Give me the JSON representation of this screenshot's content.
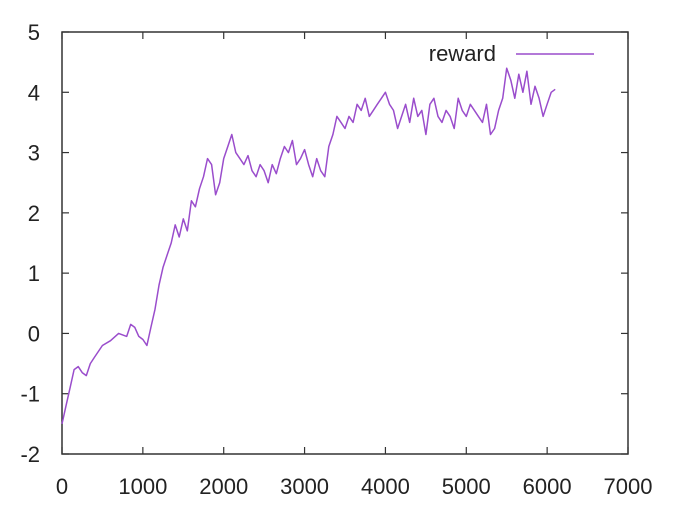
{
  "chart_data": {
    "type": "line",
    "title": "",
    "xlabel": "",
    "ylabel": "",
    "xlim": [
      0,
      7000
    ],
    "ylim": [
      -2,
      5
    ],
    "xticks": [
      0,
      1000,
      2000,
      3000,
      4000,
      5000,
      6000,
      7000
    ],
    "xtick_labels": [
      "0",
      "1000",
      "2000",
      "3000",
      "4000",
      "5000",
      "6000",
      "7000"
    ],
    "yticks": [
      -2,
      -1,
      0,
      1,
      2,
      3,
      4,
      5
    ],
    "ytick_labels": [
      "-2",
      "-1",
      "0",
      "1",
      "2",
      "3",
      "4",
      "5"
    ],
    "grid": false,
    "legend_position": "top-right",
    "series": [
      {
        "name": "reward",
        "color": "#9a4dcc",
        "x": [
          0,
          50,
          100,
          150,
          200,
          250,
          300,
          350,
          400,
          500,
          600,
          700,
          800,
          850,
          900,
          950,
          1000,
          1050,
          1100,
          1150,
          1200,
          1250,
          1300,
          1350,
          1400,
          1450,
          1500,
          1550,
          1600,
          1650,
          1700,
          1750,
          1800,
          1850,
          1900,
          1950,
          2000,
          2050,
          2100,
          2150,
          2200,
          2250,
          2300,
          2350,
          2400,
          2450,
          2500,
          2550,
          2600,
          2650,
          2700,
          2750,
          2800,
          2850,
          2900,
          2950,
          3000,
          3050,
          3100,
          3150,
          3200,
          3250,
          3300,
          3350,
          3400,
          3450,
          3500,
          3550,
          3600,
          3650,
          3700,
          3750,
          3800,
          3850,
          3900,
          3950,
          4000,
          4050,
          4100,
          4150,
          4200,
          4250,
          4300,
          4350,
          4400,
          4450,
          4500,
          4550,
          4600,
          4650,
          4700,
          4750,
          4800,
          4850,
          4900,
          4950,
          5000,
          5050,
          5100,
          5150,
          5200,
          5250,
          5300,
          5350,
          5400,
          5450,
          5500,
          5550,
          5600,
          5650,
          5700,
          5750,
          5800,
          5850,
          5900,
          5950,
          6000,
          6050,
          6100
        ],
        "y": [
          -1.5,
          -1.2,
          -0.9,
          -0.6,
          -0.55,
          -0.65,
          -0.7,
          -0.5,
          -0.4,
          -0.2,
          -0.12,
          0.0,
          -0.05,
          0.15,
          0.1,
          -0.05,
          -0.1,
          -0.2,
          0.1,
          0.4,
          0.8,
          1.1,
          1.3,
          1.5,
          1.8,
          1.6,
          1.9,
          1.7,
          2.2,
          2.1,
          2.4,
          2.6,
          2.9,
          2.8,
          2.3,
          2.5,
          2.9,
          3.1,
          3.3,
          3.0,
          2.9,
          2.8,
          2.95,
          2.7,
          2.6,
          2.8,
          2.7,
          2.5,
          2.8,
          2.65,
          2.9,
          3.1,
          3.0,
          3.2,
          2.8,
          2.9,
          3.05,
          2.8,
          2.6,
          2.9,
          2.7,
          2.6,
          3.1,
          3.3,
          3.6,
          3.5,
          3.4,
          3.6,
          3.5,
          3.8,
          3.7,
          3.9,
          3.6,
          3.7,
          3.8,
          3.9,
          4.0,
          3.8,
          3.7,
          3.4,
          3.6,
          3.8,
          3.5,
          3.9,
          3.6,
          3.7,
          3.3,
          3.8,
          3.9,
          3.6,
          3.5,
          3.7,
          3.6,
          3.4,
          3.9,
          3.7,
          3.6,
          3.8,
          3.7,
          3.6,
          3.5,
          3.8,
          3.3,
          3.4,
          3.7,
          3.9,
          4.4,
          4.2,
          3.9,
          4.3,
          4.0,
          4.35,
          3.8,
          4.1,
          3.9,
          3.6,
          3.8,
          4.0,
          4.05
        ]
      }
    ]
  }
}
